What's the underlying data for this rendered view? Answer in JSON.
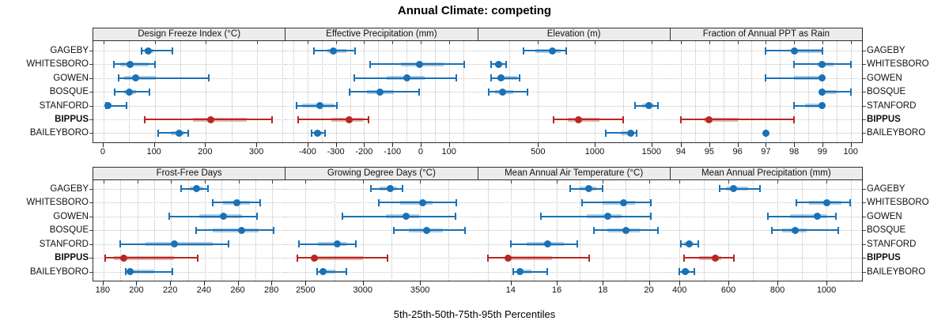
{
  "title": "Annual Climate: competing",
  "xlabel": "5th-25th-50th-75th-95th Percentiles",
  "percentile_labels": [
    "5th",
    "25th",
    "50th",
    "75th",
    "95th"
  ],
  "sites": [
    {
      "name": "GAGEBY",
      "highlight": false
    },
    {
      "name": "WHITESBORO",
      "highlight": false
    },
    {
      "name": "GOWEN",
      "highlight": false
    },
    {
      "name": "BOSQUE",
      "highlight": false
    },
    {
      "name": "STANFORD",
      "highlight": false
    },
    {
      "name": "BIPPUS",
      "highlight": true
    },
    {
      "name": "BAILEYBORO",
      "highlight": false
    }
  ],
  "colors": {
    "series": "#1a71b5",
    "series_band": "#1a71b5",
    "highlight": "#b82722",
    "highlight_band": "#b82722",
    "strip_bg": "#ececec",
    "grid": "#bdbdbd",
    "border": "#2e2e2e"
  },
  "chart_data": {
    "type": "dotplot",
    "title": "Annual Climate: competing",
    "xlabel": "5th-25th-50th-75th-95th Percentiles",
    "note": "Each row shows 5th-25th-50th-75th-95th percentiles: thin line 5th-95th with end caps, translucent band 25th-75th, dot at median.",
    "legend_position": "none",
    "grid": "dotted",
    "panels": [
      {
        "label": "Design Freeze Index (°C)",
        "row": 0,
        "col": 0,
        "domain": [
          -20,
          356
        ],
        "ticks": [
          0,
          100,
          200,
          300
        ],
        "tick_labels": [
          "0",
          "100",
          "200",
          "300"
        ],
        "gridlines": [
          0,
          50,
          100,
          150,
          200,
          250,
          300,
          350
        ],
        "values": [
          [
            75,
            80,
            88,
            98,
            135
          ],
          [
            20,
            32,
            52,
            88,
            100
          ],
          [
            30,
            40,
            63,
            102,
            205
          ],
          [
            22,
            40,
            50,
            63,
            90
          ],
          [
            4,
            6,
            9,
            16,
            45
          ],
          [
            81,
            174,
            210,
            280,
            330
          ],
          [
            106,
            132,
            148,
            157,
            165
          ]
        ]
      },
      {
        "label": "Effective Precipitation (mm)",
        "row": 0,
        "col": 1,
        "domain": [
          -480,
          200
        ],
        "ticks": [
          -400,
          -300,
          -200,
          -100,
          0,
          100
        ],
        "tick_labels": [
          "-400",
          "-300",
          "-200",
          "-100",
          "0",
          "100"
        ],
        "gridlines": [
          -450,
          -400,
          -350,
          -300,
          -250,
          -200,
          -150,
          -100,
          -50,
          0,
          50,
          100,
          150
        ],
        "values": [
          [
            -378,
            -330,
            -310,
            -262,
            -233
          ],
          [
            -180,
            -70,
            -5,
            80,
            155
          ],
          [
            -235,
            -120,
            -48,
            15,
            127
          ],
          [
            -252,
            -190,
            -145,
            -95,
            -5
          ],
          [
            -438,
            -420,
            -356,
            -305,
            -297
          ],
          [
            -433,
            -315,
            -253,
            -205,
            -183
          ],
          [
            -386,
            -378,
            -365,
            -350,
            -337
          ]
        ]
      },
      {
        "label": "Elevation (m)",
        "row": 0,
        "col": 2,
        "domain": [
          -35,
          1660
        ],
        "ticks": [
          500,
          1000,
          1500
        ],
        "tick_labels": [
          "500",
          "1000",
          "1500"
        ],
        "gridlines": [
          250,
          500,
          750,
          1000,
          1250,
          1500
        ],
        "values": [
          [
            370,
            480,
            625,
            700,
            750
          ],
          [
            90,
            120,
            153,
            185,
            222
          ],
          [
            90,
            140,
            174,
            315,
            340
          ],
          [
            69,
            120,
            188,
            280,
            410
          ],
          [
            1355,
            1420,
            1480,
            1520,
            1555
          ],
          [
            640,
            760,
            855,
            1040,
            1250
          ],
          [
            1100,
            1230,
            1320,
            1345,
            1370
          ]
        ]
      },
      {
        "label": "Fraction of Annual PPT as Rain",
        "row": 0,
        "col": 3,
        "domain": [
          93.6,
          100.4
        ],
        "ticks": [
          94,
          95,
          96,
          97,
          98,
          99,
          100
        ],
        "tick_labels": [
          "94",
          "95",
          "96",
          "97",
          "98",
          "99",
          "100"
        ],
        "gridlines": [
          94,
          94.5,
          95,
          95.5,
          96,
          96.5,
          97,
          97.5,
          98,
          98.5,
          99,
          99.5,
          100
        ],
        "values": [
          [
            97,
            97.9,
            98,
            99,
            99
          ],
          [
            98,
            98.8,
            99,
            99.4,
            100
          ],
          [
            97,
            98,
            99,
            99,
            99
          ],
          [
            99,
            99,
            99,
            99.5,
            100
          ],
          [
            98,
            98.4,
            99,
            99,
            99
          ],
          [
            94,
            94.8,
            95,
            96,
            98
          ],
          [
            97,
            97,
            97,
            97,
            97
          ]
        ]
      },
      {
        "label": "Frost-Free Days",
        "row": 1,
        "col": 0,
        "domain": [
          174,
          288
        ],
        "ticks": [
          180,
          200,
          220,
          240,
          260,
          280
        ],
        "tick_labels": [
          "180",
          "200",
          "220",
          "240",
          "260",
          "280"
        ],
        "gridlines": [
          180,
          190,
          200,
          210,
          220,
          230,
          240,
          250,
          260,
          270,
          280
        ],
        "values": [
          [
            226,
            231,
            235,
            239,
            242
          ],
          [
            245,
            251,
            259,
            267,
            273
          ],
          [
            219,
            237,
            251,
            262,
            271
          ],
          [
            235,
            245,
            262,
            272,
            281
          ],
          [
            190,
            205,
            222,
            245,
            254
          ],
          [
            181,
            186,
            192,
            222,
            236
          ],
          [
            193,
            194,
            196,
            210,
            221
          ]
        ]
      },
      {
        "label": "Growing Degree Days (°C)",
        "row": 1,
        "col": 1,
        "domain": [
          2320,
          4000
        ],
        "ticks": [
          2500,
          3000,
          3500
        ],
        "tick_labels": [
          "2500",
          "3000",
          "3500"
        ],
        "gridlines": [
          2500,
          2750,
          3000,
          3250,
          3500,
          3750
        ],
        "values": [
          [
            3070,
            3150,
            3240,
            3300,
            3350
          ],
          [
            3140,
            3330,
            3520,
            3610,
            3820
          ],
          [
            2820,
            3200,
            3380,
            3490,
            3810
          ],
          [
            3270,
            3400,
            3560,
            3700,
            3890
          ],
          [
            2445,
            2610,
            2780,
            2860,
            2940
          ],
          [
            2430,
            2560,
            2575,
            3000,
            3215
          ],
          [
            2600,
            2640,
            2655,
            2760,
            2860
          ]
        ]
      },
      {
        "label": "Mean Annual Air Temperature (°C)",
        "row": 1,
        "col": 2,
        "domain": [
          12.55,
          20.9
        ],
        "ticks": [
          14,
          16,
          18,
          20
        ],
        "tick_labels": [
          "14",
          "16",
          "18",
          "20"
        ],
        "gridlines": [
          13,
          14,
          15,
          16,
          17,
          18,
          19,
          20
        ],
        "values": [
          [
            16.6,
            17.0,
            17.4,
            17.7,
            18.0
          ],
          [
            17.1,
            18.0,
            18.9,
            19.4,
            20.1
          ],
          [
            15.3,
            17.3,
            18.2,
            18.8,
            20.1
          ],
          [
            17.6,
            18.2,
            19.0,
            19.6,
            20.4
          ],
          [
            14.0,
            14.7,
            15.6,
            16.3,
            16.9
          ],
          [
            13.0,
            13.8,
            13.9,
            15.8,
            17.4
          ],
          [
            14.1,
            14.3,
            14.4,
            14.9,
            15.6
          ]
        ]
      },
      {
        "label": "Mean Annual Precipitation (mm)",
        "row": 1,
        "col": 3,
        "domain": [
          360,
          1145
        ],
        "ticks": [
          400,
          600,
          800,
          1000
        ],
        "tick_labels": [
          "400",
          "600",
          "800",
          "1000"
        ],
        "gridlines": [
          400,
          500,
          600,
          700,
          800,
          900,
          1000,
          1100
        ],
        "values": [
          [
            565,
            590,
            622,
            680,
            730
          ],
          [
            878,
            930,
            1003,
            1060,
            1097
          ],
          [
            762,
            850,
            962,
            1000,
            1040
          ],
          [
            778,
            820,
            871,
            920,
            1047
          ],
          [
            407,
            420,
            440,
            455,
            478
          ],
          [
            420,
            480,
            547,
            570,
            623
          ],
          [
            400,
            410,
            423,
            440,
            460
          ]
        ]
      }
    ]
  }
}
